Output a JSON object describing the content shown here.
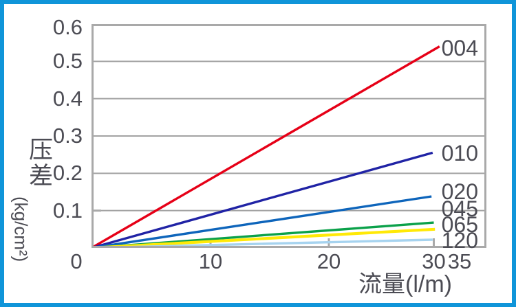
{
  "panel": {
    "border_color": "#1095d9",
    "background": "#ffffff",
    "text_color": "#4c4c54"
  },
  "chart_data": {
    "type": "line",
    "title": "",
    "xlabel": "流量(l/m)",
    "ylabel": "压差",
    "ylabel_unit": "(kg/cm²)",
    "xlim": [
      0,
      35
    ],
    "ylim": [
      0,
      0.6
    ],
    "x_ticks": [
      "0",
      "10",
      "20",
      "30",
      "35"
    ],
    "y_ticks": [
      "0.6",
      "0.5",
      "0.4",
      "0.3",
      "0.2",
      "0.1"
    ],
    "grid": "horizontal-only",
    "grid_color": "#a3a3a3",
    "plot_border_color": "#a9a9a9",
    "legend_position": "labels-at-right-end-of-lines",
    "series": [
      {
        "name": "004",
        "color": "#e60017",
        "points": [
          [
            0,
            0
          ],
          [
            30.5,
            0.54
          ]
        ]
      },
      {
        "name": "010",
        "color": "#2023a5",
        "points": [
          [
            0,
            0
          ],
          [
            29.9,
            0.255
          ]
        ]
      },
      {
        "name": "020",
        "color": "#0e65bb",
        "points": [
          [
            0,
            0
          ],
          [
            29.8,
            0.138
          ]
        ]
      },
      {
        "name": "045",
        "color": "#0ba14a",
        "points": [
          [
            0,
            0
          ],
          [
            30.0,
            0.068
          ]
        ]
      },
      {
        "name": "065",
        "color": "#ffe907",
        "points": [
          [
            0,
            0
          ],
          [
            30.1,
            0.05
          ]
        ]
      },
      {
        "name": "120",
        "color": "#a6d3ef",
        "points": [
          [
            0,
            0
          ],
          [
            29.9,
            0.022
          ]
        ]
      }
    ]
  }
}
